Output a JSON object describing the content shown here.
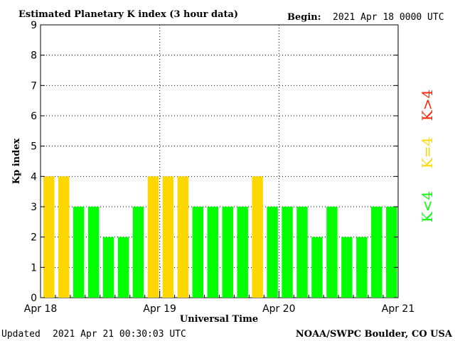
{
  "header": {
    "title": "Estimated Planetary K index (3 hour data)",
    "begin_label": "Begin:",
    "begin_value": "2021 Apr 18 0000 UTC"
  },
  "footer": {
    "updated_label": "Updated",
    "updated_value": "2021 Apr 21 00:30:03 UTC",
    "credit": "NOAA/SWPC Boulder, CO USA"
  },
  "legend": {
    "high": "K>4",
    "equal": "K=4",
    "low": "K<4"
  },
  "colors": {
    "low": "#00ff00",
    "equal": "#ffd700",
    "high": "#ff2200",
    "grid": "#000000"
  },
  "chart_data": {
    "type": "bar",
    "title": "Estimated Planetary K index (3 hour data)",
    "xlabel": "Universal Time",
    "ylabel": "Kp index",
    "ylim": [
      0,
      9
    ],
    "yticks": [
      0,
      1,
      2,
      3,
      4,
      5,
      6,
      7,
      8,
      9
    ],
    "xlim": [
      0,
      24
    ],
    "xticks": [
      {
        "pos": 0,
        "label": "Apr 18"
      },
      {
        "pos": 8,
        "label": "Apr 19"
      },
      {
        "pos": 16,
        "label": "Apr 20"
      },
      {
        "pos": 24,
        "label": "Apr 21"
      }
    ],
    "grid": true,
    "legend_position": "right",
    "values": [
      4,
      4,
      3,
      3,
      2,
      2,
      3,
      4,
      4,
      4,
      3,
      3,
      3,
      3,
      4,
      3,
      3,
      3,
      2,
      3,
      2,
      2,
      3,
      3
    ]
  }
}
